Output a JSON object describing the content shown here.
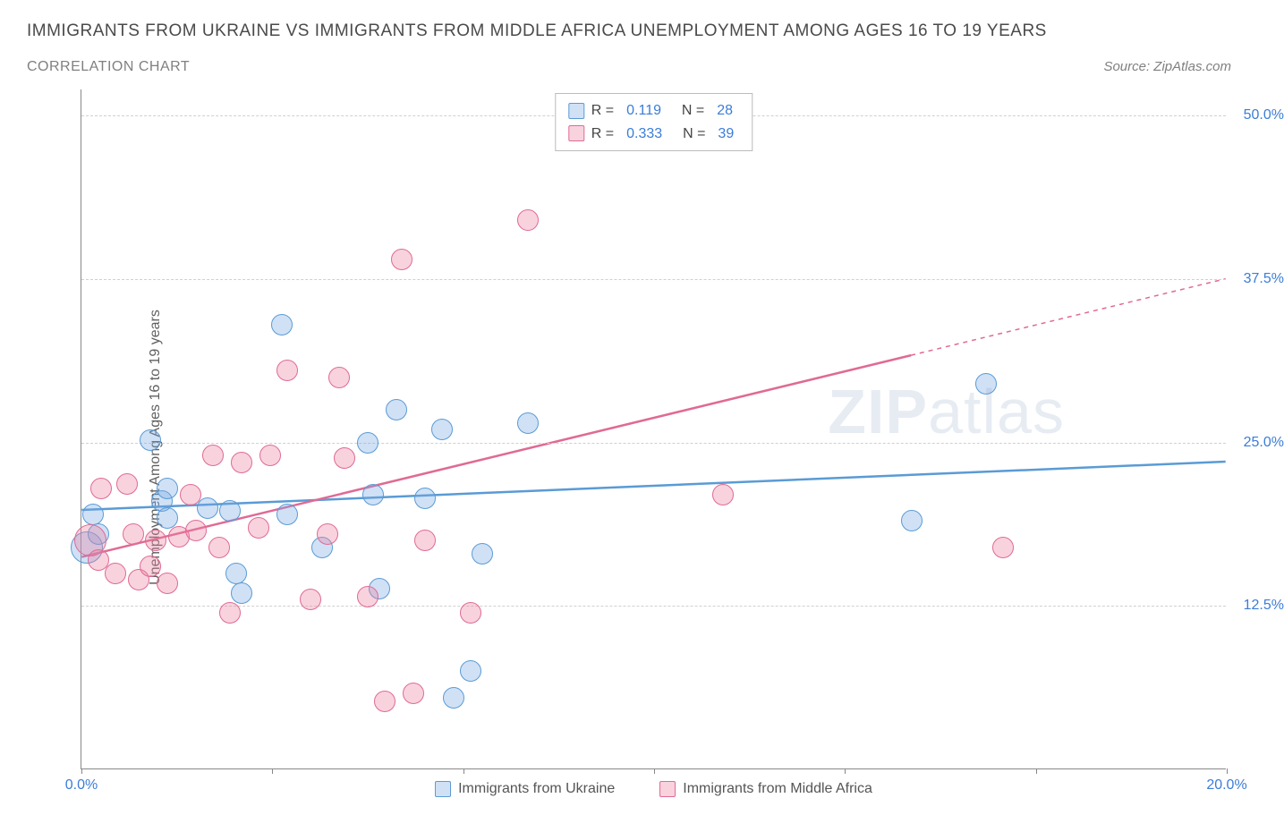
{
  "title": "IMMIGRANTS FROM UKRAINE VS IMMIGRANTS FROM MIDDLE AFRICA UNEMPLOYMENT AMONG AGES 16 TO 19 YEARS",
  "subtitle": "CORRELATION CHART",
  "source": "Source: ZipAtlas.com",
  "y_axis_label": "Unemployment Among Ages 16 to 19 years",
  "watermark_strong": "ZIP",
  "watermark_light": "atlas",
  "chart": {
    "type": "scatter",
    "xlim": [
      0,
      20
    ],
    "ylim": [
      0,
      52
    ],
    "x_ticks": [
      0,
      3.33,
      6.67,
      10,
      13.33,
      16.67,
      20
    ],
    "x_tick_labels": {
      "0": "0.0%",
      "20": "20.0%"
    },
    "y_ticks": [
      12.5,
      25.0,
      37.5,
      50.0
    ],
    "y_tick_labels": [
      "12.5%",
      "25.0%",
      "37.5%",
      "50.0%"
    ],
    "background_color": "#ffffff",
    "grid_color": "#d0d0d0",
    "axis_color": "#888888",
    "tick_label_color": "#3b7dd8",
    "marker_radius": 12,
    "marker_radius_large": 18,
    "series": [
      {
        "name": "Immigrants from Ukraine",
        "fill": "rgba(120,170,230,0.35)",
        "stroke": "#5a9bd5",
        "R": "0.119",
        "N": "28",
        "trend": {
          "y_at_x0": 19.8,
          "y_at_x20": 23.5,
          "solid_until_x": 20
        },
        "points": [
          {
            "x": 0.1,
            "y": 17.0,
            "r": 18
          },
          {
            "x": 0.2,
            "y": 19.5
          },
          {
            "x": 0.3,
            "y": 18.0
          },
          {
            "x": 1.2,
            "y": 25.2
          },
          {
            "x": 1.4,
            "y": 20.5
          },
          {
            "x": 1.5,
            "y": 21.5
          },
          {
            "x": 1.5,
            "y": 19.2
          },
          {
            "x": 2.2,
            "y": 20.0
          },
          {
            "x": 2.6,
            "y": 19.8
          },
          {
            "x": 2.7,
            "y": 15.0
          },
          {
            "x": 2.8,
            "y": 13.5
          },
          {
            "x": 3.5,
            "y": 34.0
          },
          {
            "x": 3.6,
            "y": 19.5
          },
          {
            "x": 4.2,
            "y": 17.0
          },
          {
            "x": 5.0,
            "y": 25.0
          },
          {
            "x": 5.1,
            "y": 21.0
          },
          {
            "x": 5.2,
            "y": 13.8
          },
          {
            "x": 5.5,
            "y": 27.5
          },
          {
            "x": 6.0,
            "y": 20.7
          },
          {
            "x": 6.3,
            "y": 26.0
          },
          {
            "x": 6.5,
            "y": 5.5
          },
          {
            "x": 6.8,
            "y": 7.5
          },
          {
            "x": 7.0,
            "y": 16.5
          },
          {
            "x": 7.8,
            "y": 26.5
          },
          {
            "x": 14.5,
            "y": 19.0
          },
          {
            "x": 15.8,
            "y": 29.5
          }
        ]
      },
      {
        "name": "Immigrants from Middle Africa",
        "fill": "rgba(235,130,160,0.35)",
        "stroke": "#e06a94",
        "R": "0.333",
        "N": "39",
        "trend": {
          "y_at_x0": 16.2,
          "y_at_x20": 37.5,
          "solid_until_x": 14.5
        },
        "points": [
          {
            "x": 0.15,
            "y": 17.5,
            "r": 18
          },
          {
            "x": 0.3,
            "y": 16.0
          },
          {
            "x": 0.35,
            "y": 21.5
          },
          {
            "x": 0.6,
            "y": 15.0
          },
          {
            "x": 0.8,
            "y": 21.8
          },
          {
            "x": 0.9,
            "y": 18.0
          },
          {
            "x": 1.0,
            "y": 14.5
          },
          {
            "x": 1.2,
            "y": 15.5
          },
          {
            "x": 1.3,
            "y": 17.5
          },
          {
            "x": 1.5,
            "y": 14.2
          },
          {
            "x": 1.7,
            "y": 17.8
          },
          {
            "x": 1.9,
            "y": 21.0
          },
          {
            "x": 2.0,
            "y": 18.3
          },
          {
            "x": 2.3,
            "y": 24.0
          },
          {
            "x": 2.4,
            "y": 17.0
          },
          {
            "x": 2.6,
            "y": 12.0
          },
          {
            "x": 2.8,
            "y": 23.5
          },
          {
            "x": 3.1,
            "y": 18.5
          },
          {
            "x": 3.3,
            "y": 24.0
          },
          {
            "x": 3.6,
            "y": 30.5
          },
          {
            "x": 4.0,
            "y": 13.0
          },
          {
            "x": 4.3,
            "y": 18.0
          },
          {
            "x": 4.5,
            "y": 30.0
          },
          {
            "x": 4.6,
            "y": 23.8
          },
          {
            "x": 5.0,
            "y": 13.2
          },
          {
            "x": 5.3,
            "y": 5.2
          },
          {
            "x": 5.6,
            "y": 39.0
          },
          {
            "x": 5.8,
            "y": 5.8
          },
          {
            "x": 6.0,
            "y": 17.5
          },
          {
            "x": 6.8,
            "y": 12.0
          },
          {
            "x": 7.8,
            "y": 42.0
          },
          {
            "x": 11.2,
            "y": 21.0
          },
          {
            "x": 16.1,
            "y": 17.0
          }
        ]
      }
    ],
    "legend_bottom": [
      {
        "label": "Immigrants from Ukraine",
        "fill": "rgba(120,170,230,0.35)",
        "stroke": "#5a9bd5"
      },
      {
        "label": "Immigrants from Middle Africa",
        "fill": "rgba(235,130,160,0.35)",
        "stroke": "#e06a94"
      }
    ]
  }
}
